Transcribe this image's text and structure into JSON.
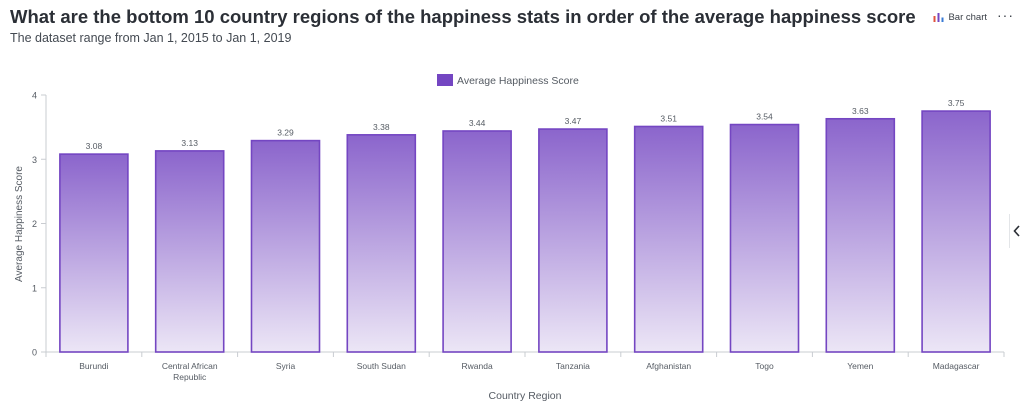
{
  "header": {
    "title": "What are the bottom 10 country regions of the happiness stats in order of the average happiness score",
    "subtitle": "The dataset range from Jan 1, 2015 to Jan 1, 2019"
  },
  "toolbar": {
    "chart_type_label": "Bar chart",
    "more_label": "···"
  },
  "colors": {
    "bar_top": "#8b65cc",
    "bar_bottom": "#ece6f6",
    "bar_stroke": "#7446c2",
    "legend_swatch": "#7446c2"
  },
  "chart_data": {
    "type": "bar",
    "xlabel": "Country Region",
    "ylabel": "Average Happiness Score",
    "ylim": [
      0,
      4
    ],
    "yticks": [
      0,
      1,
      2,
      3,
      4
    ],
    "legend": {
      "position": "top-center"
    },
    "grid": false,
    "categories": [
      "Burundi",
      "Central African Republic",
      "Syria",
      "South Sudan",
      "Rwanda",
      "Tanzania",
      "Afghanistan",
      "Togo",
      "Yemen",
      "Madagascar"
    ],
    "series": [
      {
        "name": "Average Happiness Score",
        "values": [
          3.08,
          3.13,
          3.29,
          3.38,
          3.44,
          3.47,
          3.51,
          3.54,
          3.63,
          3.75
        ],
        "labels": [
          "3.08",
          "3.13",
          "3.29",
          "3.38",
          "3.44",
          "3.47",
          "3.51",
          "3.54",
          "3.63",
          "3.75"
        ]
      }
    ]
  }
}
